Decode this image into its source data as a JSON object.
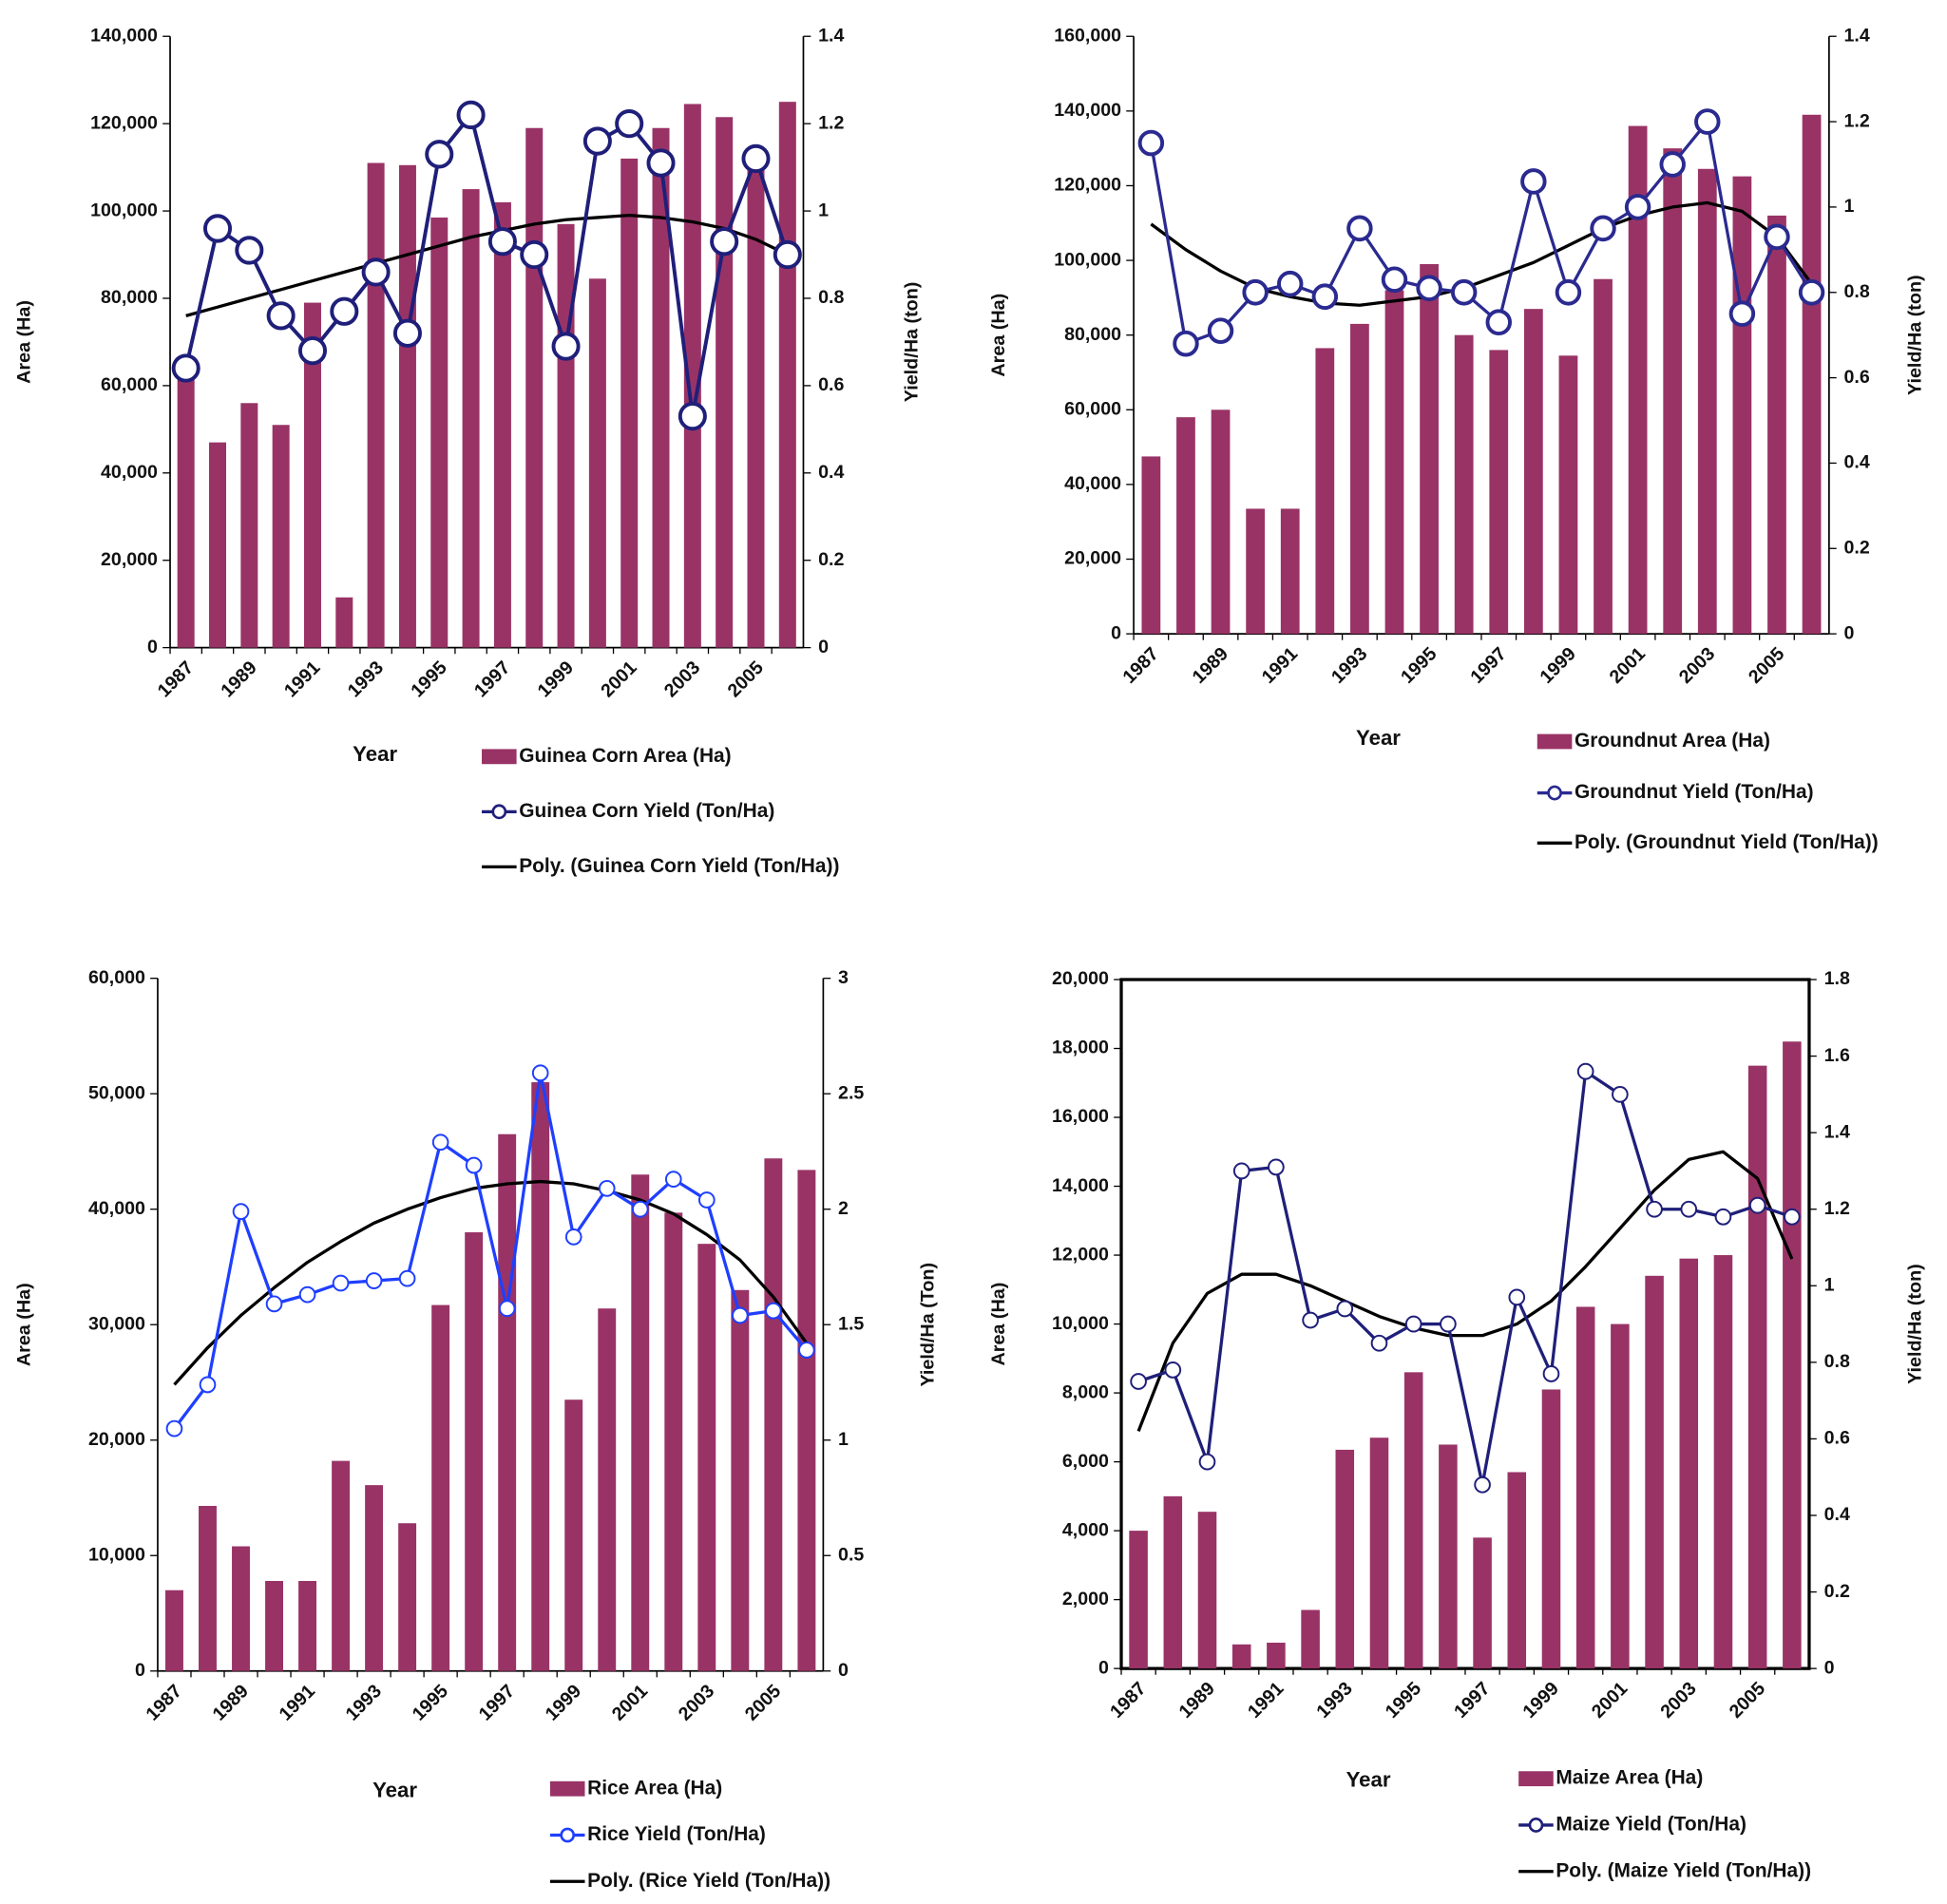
{
  "chart_data": [
    {
      "type": "bar",
      "categories": [
        "1987",
        null,
        "1989",
        null,
        "1991",
        null,
        "1993",
        null,
        "1995",
        null,
        "1997",
        null,
        "1999",
        null,
        "2001",
        null,
        "2003",
        null,
        "2005",
        null
      ],
      "x_label": "Year",
      "y_label": "Area (Ha)",
      "y2_label": "Yield/Ha (ton)",
      "ylim": [
        0,
        140000
      ],
      "yticks": [
        0,
        {
          "value": 20000,
          "label": "20,000"
        },
        {
          "value": 40000,
          "label": "40,000"
        },
        {
          "value": 60000,
          "label": "60,000"
        },
        {
          "value": 80000,
          "label": "80,000"
        },
        {
          "value": 100000,
          "label": "100,000"
        },
        {
          "value": 120000,
          "label": "120,000"
        },
        {
          "value": 140000,
          "label": "140,000"
        }
      ],
      "y2lim": [
        0,
        1.4
      ],
      "y2ticks": [
        0,
        0.2,
        0.4,
        0.6,
        0.8,
        1,
        1.2,
        1.4
      ],
      "series": [
        {
          "name": "Guinea Corn Area (Ha)",
          "type": "bar",
          "color": "#993366",
          "values": [
            63000,
            47000,
            56000,
            51000,
            79000,
            11500,
            111000,
            110500,
            98500,
            105000,
            102000,
            119000,
            97000,
            84500,
            112000,
            119000,
            124500,
            121500,
            110000,
            125000
          ]
        },
        {
          "name": "Guinea Corn Yield (Ton/Ha)",
          "type": "line",
          "axis": "y2",
          "color": "#1f1f7a",
          "values": [
            0.64,
            0.96,
            0.91,
            0.76,
            0.68,
            0.77,
            0.86,
            0.72,
            1.13,
            1.22,
            0.93,
            0.9,
            0.69,
            1.16,
            1.2,
            1.11,
            0.53,
            0.93,
            1.12,
            0.9
          ]
        },
        {
          "name": "Poly. (Guinea Corn Yield (Ton/Ha))",
          "type": "trend",
          "axis": "y2",
          "color": "#000000",
          "values": [
            0.76,
            0.78,
            0.8,
            0.82,
            0.84,
            0.86,
            0.88,
            0.9,
            0.92,
            0.94,
            0.955,
            0.97,
            0.98,
            0.985,
            0.99,
            0.985,
            0.975,
            0.96,
            0.935,
            0.9
          ]
        }
      ]
    },
    {
      "type": "bar",
      "categories": [
        "1987",
        null,
        "1989",
        null,
        "1991",
        null,
        "1993",
        null,
        "1995",
        null,
        "1997",
        null,
        "1999",
        null,
        "2001",
        null,
        "2003",
        null,
        "2005",
        null
      ],
      "x_label": "Year",
      "y_label": "Area (Ha)",
      "y2_label": "Yield/Ha (ton)",
      "ylim": [
        0,
        160000
      ],
      "yticks": [
        0,
        {
          "value": 20000,
          "label": "20,000"
        },
        {
          "value": 40000,
          "label": "40,000"
        },
        {
          "value": 60000,
          "label": "60,000"
        },
        {
          "value": 80000,
          "label": "80,000"
        },
        {
          "value": 100000,
          "label": "100,000"
        },
        {
          "value": 120000,
          "label": "120,000"
        },
        {
          "value": 140000,
          "label": "140,000"
        },
        {
          "value": 160000,
          "label": "160,000"
        }
      ],
      "y2lim": [
        0,
        1.4
      ],
      "y2ticks": [
        0,
        0.2,
        0.4,
        0.6,
        0.8,
        1,
        1.2,
        1.4
      ],
      "series": [
        {
          "name": "Groundnut Area (Ha)",
          "type": "bar",
          "color": "#993366",
          "values": [
            47500,
            58000,
            60000,
            33500,
            33500,
            76500,
            83000,
            92000,
            99000,
            80000,
            76000,
            87000,
            74500,
            95000,
            136000,
            130000,
            124500,
            122500,
            112000,
            139000
          ]
        },
        {
          "name": "Groundnut Yield (Ton/Ha)",
          "type": "line",
          "axis": "y2",
          "color": "#2a2a90",
          "values": [
            1.15,
            0.68,
            0.71,
            0.8,
            0.82,
            0.79,
            0.95,
            0.83,
            0.81,
            0.8,
            0.73,
            1.06,
            0.8,
            0.95,
            1.0,
            1.1,
            1.2,
            0.75,
            0.93,
            0.8
          ]
        },
        {
          "name": "Poly. (Groundnut Yield (Ton/Ha))",
          "type": "trend",
          "axis": "y2",
          "color": "#000000",
          "values": [
            0.96,
            0.9,
            0.85,
            0.81,
            0.79,
            0.775,
            0.77,
            0.78,
            0.79,
            0.81,
            0.84,
            0.87,
            0.91,
            0.95,
            0.98,
            1.0,
            1.01,
            0.99,
            0.93,
            0.82
          ]
        }
      ]
    },
    {
      "type": "bar",
      "categories": [
        "1987",
        null,
        "1989",
        null,
        "1991",
        null,
        "1993",
        null,
        "1995",
        null,
        "1997",
        null,
        "1999",
        null,
        "2001",
        null,
        "2003",
        null,
        "2005",
        null
      ],
      "x_label": "Year",
      "y_label": "Area (Ha)",
      "y2_label": "Yield/Ha (Ton)",
      "ylim": [
        0,
        60000
      ],
      "yticks": [
        0,
        {
          "value": 10000,
          "label": "10,000"
        },
        {
          "value": 20000,
          "label": "20,000"
        },
        {
          "value": 30000,
          "label": "30,000"
        },
        {
          "value": 40000,
          "label": "40,000"
        },
        {
          "value": 50000,
          "label": "50,000"
        },
        {
          "value": 60000,
          "label": "60,000"
        }
      ],
      "y2lim": [
        0,
        3
      ],
      "y2ticks": [
        0,
        0.5,
        1,
        1.5,
        2,
        2.5,
        3
      ],
      "series": [
        {
          "name": "Rice Area (Ha)",
          "type": "bar",
          "color": "#993366",
          "values": [
            7000,
            14300,
            10800,
            7800,
            7800,
            18200,
            16100,
            12800,
            31700,
            38000,
            46500,
            51000,
            23500,
            31400,
            43000,
            39700,
            37000,
            33000,
            44400,
            43400
          ]
        },
        {
          "name": "Rice Yield (Ton/Ha)",
          "type": "line",
          "axis": "y2",
          "color": "#1f3fff",
          "values": [
            1.05,
            1.24,
            1.99,
            1.59,
            1.63,
            1.68,
            1.69,
            1.7,
            2.29,
            2.19,
            1.57,
            2.59,
            1.88,
            2.09,
            2.0,
            2.13,
            2.04,
            1.54,
            1.56,
            1.39
          ]
        },
        {
          "name": "Poly. (Rice Yield (Ton/Ha))",
          "type": "trend",
          "axis": "y2",
          "color": "#000000",
          "values": [
            1.24,
            1.4,
            1.54,
            1.66,
            1.77,
            1.86,
            1.94,
            2.0,
            2.05,
            2.09,
            2.11,
            2.12,
            2.11,
            2.08,
            2.04,
            1.98,
            1.89,
            1.78,
            1.62,
            1.42
          ]
        }
      ]
    },
    {
      "type": "bar",
      "categories": [
        "1987",
        null,
        "1989",
        null,
        "1991",
        null,
        "1993",
        null,
        "1995",
        null,
        "1997",
        null,
        "1999",
        null,
        "2001",
        null,
        "2003",
        null,
        "2005",
        null
      ],
      "x_label": "Year",
      "y_label": "Area (Ha)",
      "y2_label": "Yield/Ha (ton)",
      "ylim": [
        0,
        20000
      ],
      "yticks": [
        0,
        {
          "value": 2000,
          "label": "2,000"
        },
        {
          "value": 4000,
          "label": "4,000"
        },
        {
          "value": 6000,
          "label": "6,000"
        },
        {
          "value": 8000,
          "label": "8,000"
        },
        {
          "value": 10000,
          "label": "10,000"
        },
        {
          "value": 12000,
          "label": "12,000"
        },
        {
          "value": 14000,
          "label": "14,000"
        },
        {
          "value": 16000,
          "label": "16,000"
        },
        {
          "value": 18000,
          "label": "18,000"
        },
        {
          "value": 20000,
          "label": "20,000"
        }
      ],
      "y2lim": [
        0,
        1.8
      ],
      "y2ticks": [
        0,
        0.2,
        0.4,
        0.6,
        0.8,
        1,
        1.2,
        1.4,
        1.6,
        1.8
      ],
      "series": [
        {
          "name": "Maize Area (Ha)",
          "type": "bar",
          "color": "#993366",
          "values": [
            4000,
            5000,
            4550,
            700,
            750,
            1700,
            6350,
            6700,
            8600,
            6500,
            3800,
            5700,
            8100,
            10500,
            10000,
            11400,
            11900,
            12000,
            17500,
            18200
          ]
        },
        {
          "name": "Maize Yield (Ton/Ha)",
          "type": "line",
          "axis": "y2",
          "color": "#1f1f7a",
          "values": [
            0.75,
            0.78,
            0.54,
            1.3,
            1.31,
            0.91,
            0.94,
            0.85,
            0.9,
            0.9,
            0.48,
            0.97,
            0.77,
            1.56,
            1.5,
            1.2,
            1.2,
            1.18,
            1.21,
            1.18
          ]
        },
        {
          "name": "Poly. (Maize Yield (Ton/Ha))",
          "type": "trend",
          "axis": "y2",
          "color": "#000000",
          "values": [
            0.62,
            0.85,
            0.98,
            1.03,
            1.03,
            1.0,
            0.96,
            0.92,
            0.89,
            0.87,
            0.87,
            0.9,
            0.96,
            1.05,
            1.15,
            1.25,
            1.33,
            1.35,
            1.28,
            1.07
          ]
        }
      ]
    }
  ]
}
